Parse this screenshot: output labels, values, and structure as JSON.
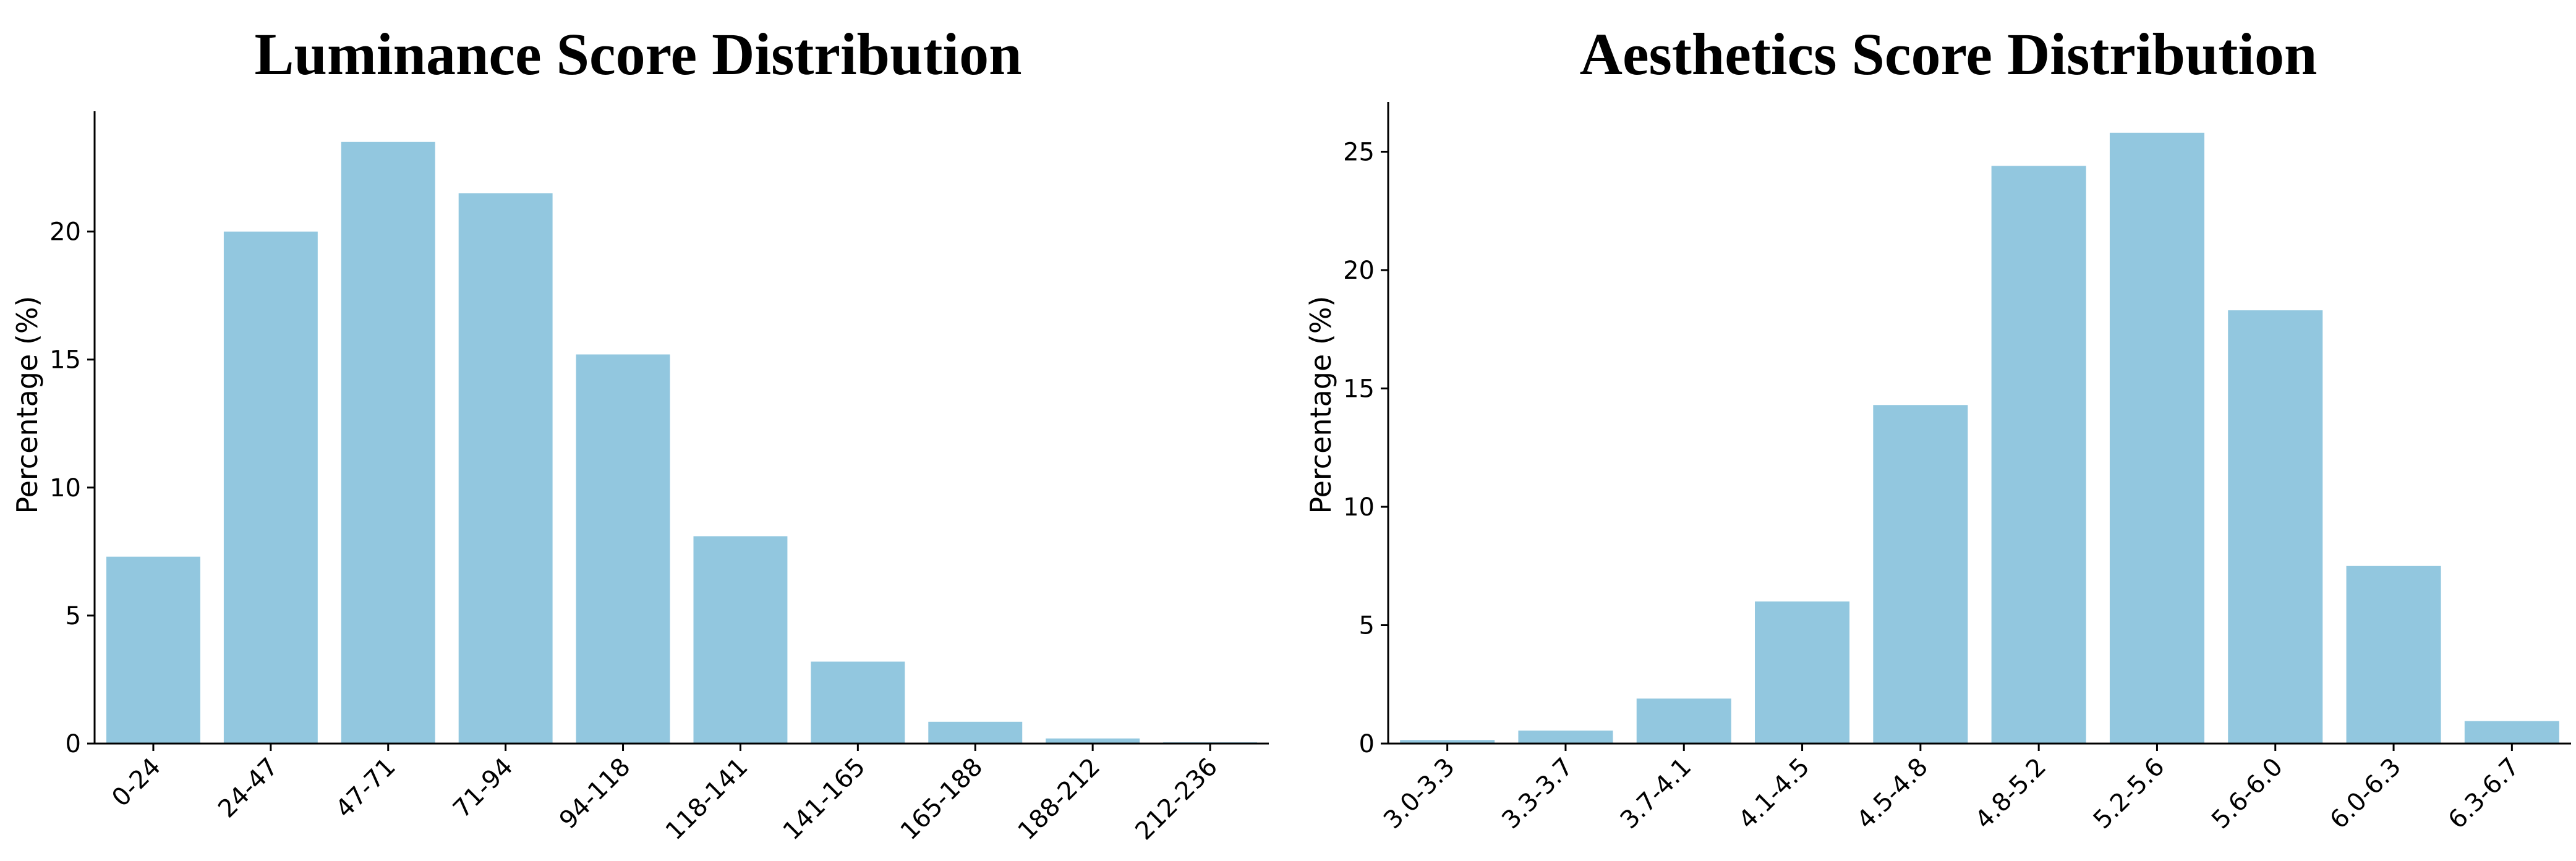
{
  "chart_data": [
    {
      "type": "bar",
      "title": "Luminance Score Distribution",
      "xlabel": "",
      "ylabel": "Percentage (%)",
      "categories": [
        "0-24",
        "24-47",
        "47-71",
        "71-94",
        "94-118",
        "118-141",
        "141-165",
        "165-188",
        "188-212",
        "212-236"
      ],
      "values": [
        7.3,
        20.0,
        23.5,
        21.5,
        15.2,
        8.1,
        3.2,
        0.85,
        0.2,
        0.05
      ],
      "yticks": [
        0,
        5,
        10,
        15,
        20
      ],
      "ylim": [
        0,
        24.7
      ],
      "bar_color": "#92C7DF",
      "grid": false,
      "legend": "none"
    },
    {
      "type": "bar",
      "title": "Aesthetics Score Distribution",
      "xlabel": "",
      "ylabel": "Percentage (%)",
      "categories": [
        "3.0-3.3",
        "3.3-3.7",
        "3.7-4.1",
        "4.1-4.5",
        "4.5-4.8",
        "4.8-5.2",
        "5.2-5.6",
        "5.6-6.0",
        "6.0-6.3",
        "6.3-6.7"
      ],
      "values": [
        0.15,
        0.55,
        1.9,
        6.0,
        14.3,
        24.4,
        25.8,
        18.3,
        7.5,
        0.95
      ],
      "yticks": [
        0,
        5,
        10,
        15,
        20,
        25
      ],
      "ylim": [
        0,
        27.1
      ],
      "bar_color": "#92C7DF",
      "grid": false,
      "legend": "none"
    }
  ]
}
